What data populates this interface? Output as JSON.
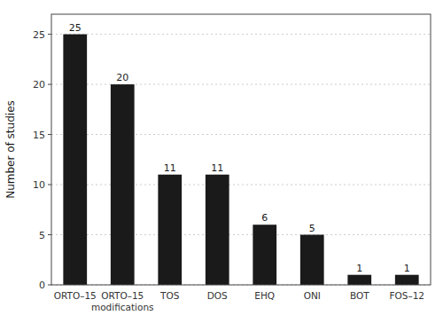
{
  "chart_data": {
    "type": "bar",
    "categories": [
      "ORTO–15",
      "ORTO–15\nmodifications",
      "TOS",
      "DOS",
      "EHQ",
      "ONI",
      "BOT",
      "FOS–12"
    ],
    "values": [
      25,
      20,
      11,
      11,
      6,
      5,
      1,
      1
    ],
    "color": "#1a1a1a",
    "ylabel": "Number of studies",
    "ylim": [
      0,
      27
    ],
    "yticks": [
      0,
      5,
      10,
      15,
      20,
      25
    ],
    "grid": true,
    "data_labels": true
  }
}
